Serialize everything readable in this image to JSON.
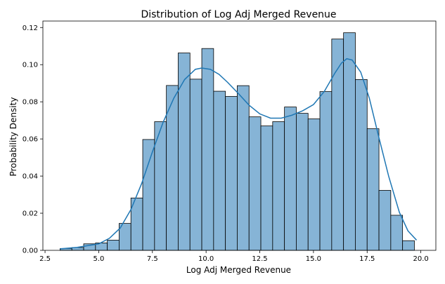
{
  "chart_data": {
    "type": "bar",
    "title": "Distribution of Log Adj Merged Revenue",
    "xlabel": "Log Adj Merged Revenue",
    "ylabel": "Probability Density",
    "xlim": [
      2.4,
      20.7
    ],
    "ylim": [
      0.0,
      0.1235
    ],
    "x_ticks": [
      2.5,
      5.0,
      7.5,
      10.0,
      12.5,
      15.0,
      17.5,
      20.0
    ],
    "x_tick_labels": [
      "2.5",
      "5.0",
      "7.5",
      "10.0",
      "12.5",
      "15.0",
      "17.5",
      "20.0"
    ],
    "y_ticks": [
      0.0,
      0.02,
      0.04,
      0.06,
      0.08,
      0.1,
      0.12
    ],
    "y_tick_labels": [
      "0.00",
      "0.02",
      "0.04",
      "0.06",
      "0.08",
      "0.10",
      "0.12"
    ],
    "grid": false,
    "bar_color": "#86b4d6",
    "kde_color": "#1f77b4",
    "bins": [
      {
        "x0": 3.2,
        "x1": 3.75,
        "density": 0.001
      },
      {
        "x0": 3.75,
        "x1": 4.3,
        "density": 0.0015
      },
      {
        "x0": 4.3,
        "x1": 4.85,
        "density": 0.0035
      },
      {
        "x0": 4.85,
        "x1": 5.4,
        "density": 0.004
      },
      {
        "x0": 5.4,
        "x1": 5.95,
        "density": 0.0055
      },
      {
        "x0": 5.95,
        "x1": 6.5,
        "density": 0.0145
      },
      {
        "x0": 6.5,
        "x1": 7.05,
        "density": 0.0282
      },
      {
        "x0": 7.05,
        "x1": 7.6,
        "density": 0.0597
      },
      {
        "x0": 7.6,
        "x1": 8.15,
        "density": 0.0693
      },
      {
        "x0": 8.15,
        "x1": 8.7,
        "density": 0.0888
      },
      {
        "x0": 8.7,
        "x1": 9.25,
        "density": 0.1063
      },
      {
        "x0": 9.25,
        "x1": 9.8,
        "density": 0.0922
      },
      {
        "x0": 9.8,
        "x1": 10.35,
        "density": 0.1087
      },
      {
        "x0": 10.35,
        "x1": 10.9,
        "density": 0.0857
      },
      {
        "x0": 10.9,
        "x1": 11.45,
        "density": 0.0829
      },
      {
        "x0": 11.45,
        "x1": 12.0,
        "density": 0.0887
      },
      {
        "x0": 12.0,
        "x1": 12.55,
        "density": 0.0719
      },
      {
        "x0": 12.55,
        "x1": 13.1,
        "density": 0.067
      },
      {
        "x0": 13.1,
        "x1": 13.65,
        "density": 0.0693
      },
      {
        "x0": 13.65,
        "x1": 14.2,
        "density": 0.0772
      },
      {
        "x0": 14.2,
        "x1": 14.75,
        "density": 0.0738
      },
      {
        "x0": 14.75,
        "x1": 15.3,
        "density": 0.0708
      },
      {
        "x0": 15.3,
        "x1": 15.85,
        "density": 0.0855
      },
      {
        "x0": 15.85,
        "x1": 16.4,
        "density": 0.1138
      },
      {
        "x0": 16.4,
        "x1": 16.95,
        "density": 0.1172
      },
      {
        "x0": 16.95,
        "x1": 17.5,
        "density": 0.092
      },
      {
        "x0": 17.5,
        "x1": 18.05,
        "density": 0.0655
      },
      {
        "x0": 18.05,
        "x1": 18.6,
        "density": 0.0323
      },
      {
        "x0": 18.6,
        "x1": 19.15,
        "density": 0.0189
      },
      {
        "x0": 19.15,
        "x1": 19.7,
        "density": 0.0052
      }
    ],
    "kde": {
      "x": [
        3.2,
        4.0,
        5.0,
        5.5,
        6.0,
        6.5,
        7.0,
        7.5,
        8.0,
        8.5,
        9.0,
        9.5,
        9.8,
        10.2,
        10.6,
        11.0,
        11.5,
        12.0,
        12.5,
        13.0,
        13.5,
        14.0,
        14.5,
        15.0,
        15.5,
        16.0,
        16.3,
        16.55,
        16.8,
        17.2,
        17.6,
        18.0,
        18.5,
        19.0,
        19.4,
        19.8
      ],
      "y": [
        0.0008,
        0.0016,
        0.0035,
        0.0065,
        0.012,
        0.022,
        0.036,
        0.053,
        0.069,
        0.082,
        0.092,
        0.0975,
        0.0982,
        0.0975,
        0.0948,
        0.0905,
        0.0845,
        0.0782,
        0.0735,
        0.0712,
        0.0712,
        0.0728,
        0.0752,
        0.0785,
        0.0855,
        0.0955,
        0.1008,
        0.1032,
        0.1025,
        0.096,
        0.082,
        0.063,
        0.04,
        0.0205,
        0.0105,
        0.0055
      ]
    }
  }
}
